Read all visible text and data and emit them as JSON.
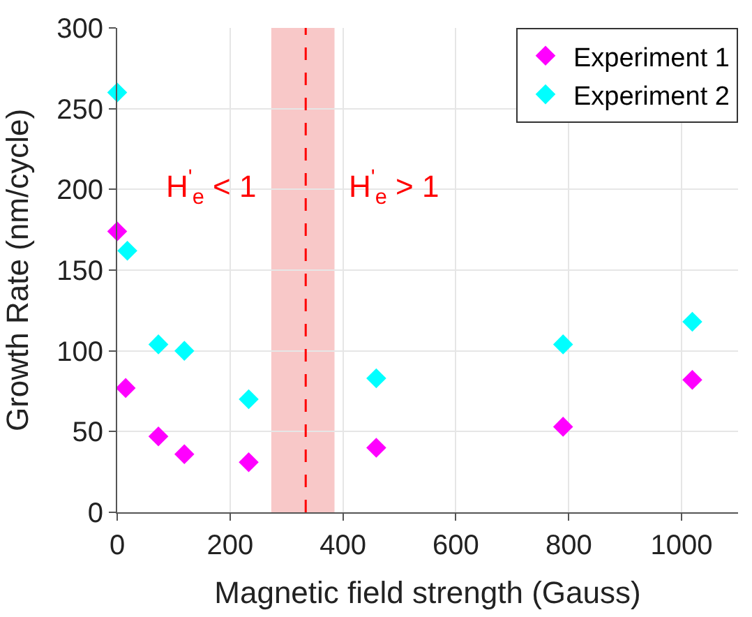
{
  "chart_data": {
    "type": "scatter",
    "xlabel": "Magnetic field strength (Gauss)",
    "ylabel": "Growth Rate (nm/cycle)",
    "series": [
      {
        "name": "Experiment 1",
        "color": "#ff00ff",
        "x": [
          0,
          15,
          73,
          119,
          233,
          459,
          790,
          1019
        ],
        "values": [
          174,
          77,
          47,
          36,
          31,
          40,
          53,
          82
        ]
      },
      {
        "name": "Experiment 2",
        "color": "#00ffff",
        "x": [
          0,
          18,
          73,
          119,
          233,
          459,
          790,
          1019
        ],
        "values": [
          260,
          162,
          104,
          100,
          70,
          83,
          104,
          118
        ]
      }
    ],
    "xlim": [
      0,
      1100
    ],
    "xticks": [
      0,
      200,
      400,
      600,
      800,
      1000
    ],
    "ylim": [
      0,
      300
    ],
    "yticks": [
      0,
      50,
      100,
      150,
      200,
      250,
      300
    ],
    "bands": [
      {
        "axis": "x",
        "from": 273,
        "to": 385,
        "color": "#f8c8c8"
      }
    ],
    "ref_lines": [
      {
        "axis": "x",
        "value": 334,
        "color": "#ff0000",
        "line_style": "dashed"
      }
    ],
    "annotations": [
      "H$^{'}$$_{e}$ < 1",
      "H$^{'}$$_{e}$ > 1"
    ],
    "grid": true,
    "legend": "top right",
    "marker": "diamond"
  }
}
